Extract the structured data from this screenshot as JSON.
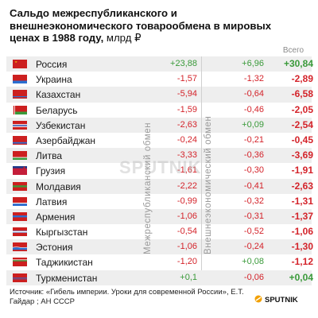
{
  "title": "Сальдо межреспубликанского и внешнеэкономического товарообмена в мировых ценах в 1988 году,",
  "unit": "млрд ₽",
  "total_header": "Всего",
  "column_labels": [
    "Межреспубликанский обмен",
    "Внешнеэкономический обмен"
  ],
  "source": "Источник: «Гибель империи. Уроки для современной России», Е.Т. Гайдар ; АН СССР",
  "logo": "SPUTNIK",
  "watermark": "SPUTNIK",
  "colors": {
    "negative": "#d4232a",
    "positive": "#3a9a3a",
    "row_alt": "#eeeeee"
  },
  "chart_data": {
    "type": "table",
    "columns": [
      "Межреспубликанский обмен",
      "Внешнеэкономический обмен",
      "Всего"
    ],
    "rows": [
      {
        "name": "Россия",
        "inter": "+23,88",
        "foreign": "+6,96",
        "total": "+30,84",
        "flag": "russia-flag-icon"
      },
      {
        "name": "Украина",
        "inter": "-1,57",
        "foreign": "-1,32",
        "total": "-2,89",
        "flag": "ukraine-flag-icon"
      },
      {
        "name": "Казахстан",
        "inter": "-5,94",
        "foreign": "-0,64",
        "total": "-6,58",
        "flag": "kazakhstan-flag-icon"
      },
      {
        "name": "Беларусь",
        "inter": "-1,59",
        "foreign": "-0,46",
        "total": "-2,05",
        "flag": "belarus-flag-icon"
      },
      {
        "name": "Узбекистан",
        "inter": "-2,63",
        "foreign": "+0,09",
        "total": "-2,54",
        "flag": "uzbekistan-flag-icon"
      },
      {
        "name": "Азербайджан",
        "inter": "-0,24",
        "foreign": "-0,21",
        "total": "-0,45",
        "flag": "azerbaijan-flag-icon"
      },
      {
        "name": "Литва",
        "inter": "-3,33",
        "foreign": "-0,36",
        "total": "-3,69",
        "flag": "lithuania-flag-icon"
      },
      {
        "name": "Грузия",
        "inter": "-1,61",
        "foreign": "-0,30",
        "total": "-1,91",
        "flag": "georgia-flag-icon"
      },
      {
        "name": "Молдавия",
        "inter": "-2,22",
        "foreign": "-0,41",
        "total": "-2,63",
        "flag": "moldavia-flag-icon"
      },
      {
        "name": "Латвия",
        "inter": "-0,99",
        "foreign": "-0,32",
        "total": "-1,31",
        "flag": "latvia-flag-icon"
      },
      {
        "name": "Армения",
        "inter": "-1,06",
        "foreign": "-0,31",
        "total": "-1,37",
        "flag": "armenia-flag-icon"
      },
      {
        "name": "Кыргызстан",
        "inter": "-0,54",
        "foreign": "-0,52",
        "total": "-1,06",
        "flag": "kyrgyzstan-flag-icon"
      },
      {
        "name": "Эстония",
        "inter": "-1,06",
        "foreign": "-0,24",
        "total": "-1,30",
        "flag": "estonia-flag-icon"
      },
      {
        "name": "Таджикистан",
        "inter": "-1,20",
        "foreign": "+0,08",
        "total": "-1,12",
        "flag": "tajikistan-flag-icon"
      },
      {
        "name": "Туркменистан",
        "inter": "+0,1",
        "foreign": "-0,06",
        "total": "+0,04",
        "flag": "turkmenistan-flag-icon"
      }
    ]
  }
}
